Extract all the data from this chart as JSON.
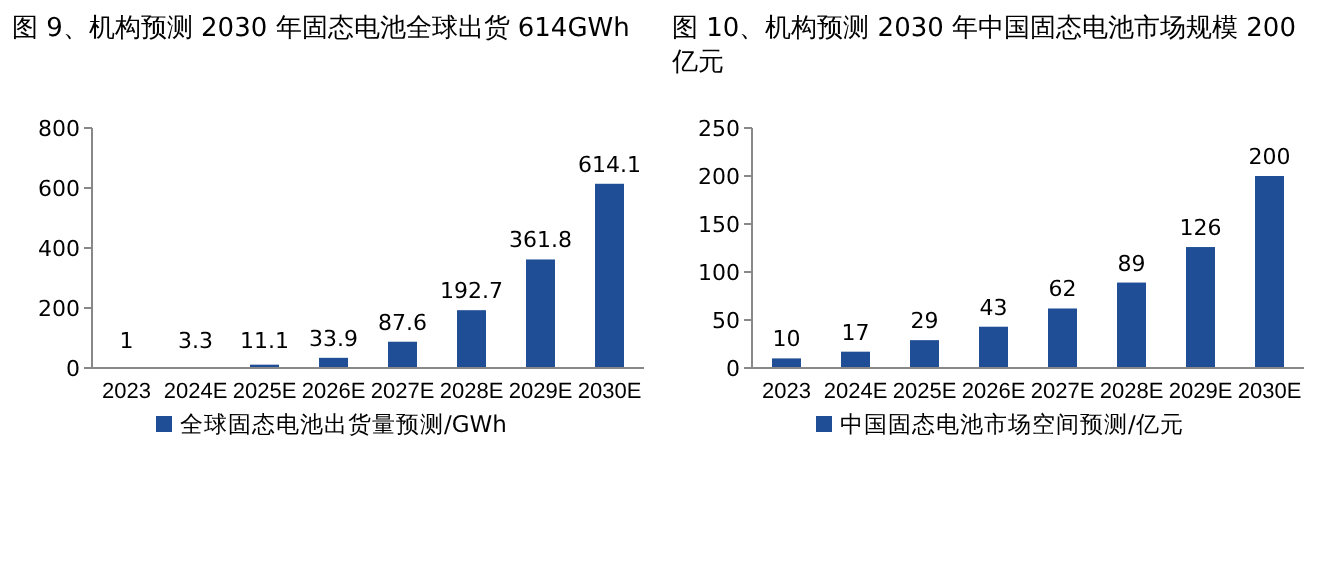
{
  "chart_data": [
    {
      "type": "bar",
      "title": "图 9、机构预测 2030 年固态电池全球出货 614GWh",
      "categories": [
        "2023",
        "2024E",
        "2025E",
        "2026E",
        "2027E",
        "2028E",
        "2029E",
        "2030E"
      ],
      "series": [
        {
          "name": "全球固态电池出货量预测/GWh",
          "color": "#1f4e96",
          "values": [
            1,
            3.3,
            11.1,
            33.9,
            87.6,
            192.7,
            361.8,
            614.1
          ]
        }
      ],
      "ylim": [
        0,
        800
      ],
      "yticks": [
        0,
        200,
        400,
        600,
        800
      ],
      "data_labels": true,
      "legend": "bottom",
      "grid": false
    },
    {
      "type": "bar",
      "title": "图 10、机构预测 2030 年中国固态电池市场规模 200 亿元",
      "categories": [
        "2023",
        "2024E",
        "2025E",
        "2026E",
        "2027E",
        "2028E",
        "2029E",
        "2030E"
      ],
      "series": [
        {
          "name": "中国固态电池市场空间预测/亿元",
          "color": "#1f4e96",
          "values": [
            10,
            17,
            29,
            43,
            62,
            89,
            126,
            200
          ]
        }
      ],
      "ylim": [
        0,
        250
      ],
      "yticks": [
        0,
        50,
        100,
        150,
        200,
        250
      ],
      "data_labels": true,
      "legend": "bottom",
      "grid": false
    }
  ]
}
